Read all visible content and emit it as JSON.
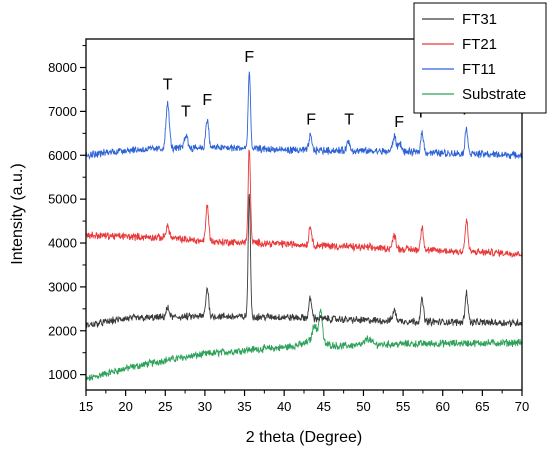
{
  "chart_data": {
    "type": "line",
    "xlabel": "2 theta (Degree)",
    "ylabel": "Intensity (a.u.)",
    "xlim": [
      15,
      70
    ],
    "ylim": [
      650,
      8650
    ],
    "xticks": [
      15,
      20,
      25,
      30,
      35,
      40,
      45,
      50,
      55,
      60,
      65,
      70
    ],
    "yticks": [
      1000,
      2000,
      3000,
      4000,
      5000,
      6000,
      7000,
      8000
    ],
    "legend_position": "top-right",
    "series": [
      {
        "name": "FT31",
        "color": "#3a3a3a",
        "baseline": [
          [
            15,
            2120
          ],
          [
            20,
            2280
          ],
          [
            30,
            2330
          ],
          [
            40,
            2310
          ],
          [
            50,
            2240
          ],
          [
            60,
            2200
          ],
          [
            70,
            2180
          ]
        ],
        "peaks": [
          [
            25.3,
            200,
            0.3
          ],
          [
            30.3,
            650,
            0.25
          ],
          [
            35.6,
            2780,
            0.2
          ],
          [
            43.3,
            450,
            0.25
          ],
          [
            53.9,
            230,
            0.3
          ],
          [
            57.4,
            500,
            0.25
          ],
          [
            63.0,
            680,
            0.25
          ]
        ]
      },
      {
        "name": "FT21",
        "color": "#e8393a",
        "baseline": [
          [
            15,
            4180
          ],
          [
            25,
            4120
          ],
          [
            30,
            4040
          ],
          [
            40,
            3980
          ],
          [
            50,
            3900
          ],
          [
            60,
            3820
          ],
          [
            70,
            3760
          ]
        ],
        "peaks": [
          [
            25.3,
            270,
            0.3
          ],
          [
            30.3,
            820,
            0.25
          ],
          [
            35.6,
            2180,
            0.2
          ],
          [
            43.3,
            430,
            0.25
          ],
          [
            53.9,
            300,
            0.3
          ],
          [
            57.4,
            520,
            0.25
          ],
          [
            63.0,
            700,
            0.25
          ]
        ]
      },
      {
        "name": "FT11",
        "color": "#2e63d6",
        "baseline": [
          [
            15,
            6000
          ],
          [
            20,
            6120
          ],
          [
            25,
            6150
          ],
          [
            30,
            6180
          ],
          [
            35,
            6160
          ],
          [
            40,
            6120
          ],
          [
            50,
            6100
          ],
          [
            60,
            6050
          ],
          [
            70,
            6000
          ]
        ],
        "peaks": [
          [
            25.3,
            1020,
            0.3
          ],
          [
            27.6,
            300,
            0.3
          ],
          [
            30.3,
            650,
            0.25
          ],
          [
            35.6,
            1760,
            0.2
          ],
          [
            43.3,
            330,
            0.25
          ],
          [
            48.1,
            200,
            0.3
          ],
          [
            53.9,
            350,
            0.3
          ],
          [
            54.6,
            200,
            0.3
          ],
          [
            57.4,
            450,
            0.25
          ],
          [
            63.0,
            570,
            0.25
          ]
        ]
      },
      {
        "name": "Substrate",
        "color": "#2ea25a",
        "baseline": [
          [
            15,
            890
          ],
          [
            17,
            1000
          ],
          [
            20,
            1140
          ],
          [
            25,
            1330
          ],
          [
            30,
            1470
          ],
          [
            35,
            1560
          ],
          [
            40,
            1620
          ],
          [
            42.5,
            1700
          ],
          [
            44,
            1870
          ],
          [
            45,
            1700
          ],
          [
            47,
            1650
          ],
          [
            50,
            1680
          ],
          [
            55,
            1700
          ],
          [
            60,
            1710
          ],
          [
            65,
            1720
          ],
          [
            70,
            1730
          ]
        ],
        "peaks": [
          [
            44.6,
            720,
            0.3
          ],
          [
            43.8,
            300,
            0.3
          ],
          [
            50.6,
            140,
            0.5
          ]
        ]
      }
    ],
    "annotations": [
      {
        "text": "T",
        "x": 25.3,
        "y": 7500
      },
      {
        "text": "T",
        "x": 27.6,
        "y": 6880
      },
      {
        "text": "F",
        "x": 30.3,
        "y": 7150
      },
      {
        "text": "F",
        "x": 35.6,
        "y": 8130
      },
      {
        "text": "F",
        "x": 43.4,
        "y": 6700
      },
      {
        "text": "T",
        "x": 48.2,
        "y": 6700
      },
      {
        "text": "F",
        "x": 54.5,
        "y": 6640
      },
      {
        "text": "F",
        "x": 57.6,
        "y": 6860
      },
      {
        "text": "F",
        "x": 63.1,
        "y": 6930
      }
    ]
  }
}
